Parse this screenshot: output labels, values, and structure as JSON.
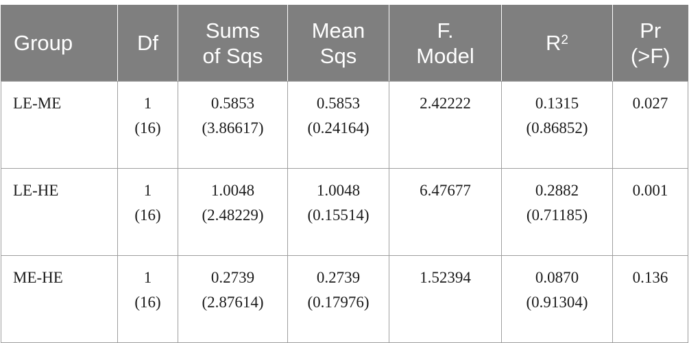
{
  "table": {
    "headers": [
      {
        "line1": "Group",
        "line2": ""
      },
      {
        "line1": "Df",
        "line2": ""
      },
      {
        "line1": "Sums",
        "line2": "of Sqs"
      },
      {
        "line1": "Mean",
        "line2": "Sqs"
      },
      {
        "line1": "F.",
        "line2": "Model"
      },
      {
        "line1": "R",
        "sup": "2",
        "line2": ""
      },
      {
        "line1": "Pr",
        "line2": "(>F)"
      }
    ],
    "rows": [
      {
        "group": "LE-ME",
        "df": {
          "top": "1",
          "bottom": "(16)"
        },
        "sums_of_sqs": {
          "top": "0.5853",
          "bottom": "(3.86617)"
        },
        "mean_sqs": {
          "top": "0.5853",
          "bottom": "(0.24164)"
        },
        "f_model": "2.42222",
        "r2": {
          "top": "0.1315",
          "bottom": "(0.86852)"
        },
        "pr": "0.027"
      },
      {
        "group": "LE-HE",
        "df": {
          "top": "1",
          "bottom": "(16)"
        },
        "sums_of_sqs": {
          "top": "1.0048",
          "bottom": "(2.48229)"
        },
        "mean_sqs": {
          "top": "1.0048",
          "bottom": "(0.15514)"
        },
        "f_model": "6.47677",
        "r2": {
          "top": "0.2882",
          "bottom": "(0.71185)"
        },
        "pr": "0.001"
      },
      {
        "group": "ME-HE",
        "df": {
          "top": "1",
          "bottom": "(16)"
        },
        "sums_of_sqs": {
          "top": "0.2739",
          "bottom": "(2.87614)"
        },
        "mean_sqs": {
          "top": "0.2739",
          "bottom": "(0.17976)"
        },
        "f_model": "1.52394",
        "r2": {
          "top": "0.0870",
          "bottom": "(0.91304)"
        },
        "pr": "0.136"
      }
    ]
  }
}
